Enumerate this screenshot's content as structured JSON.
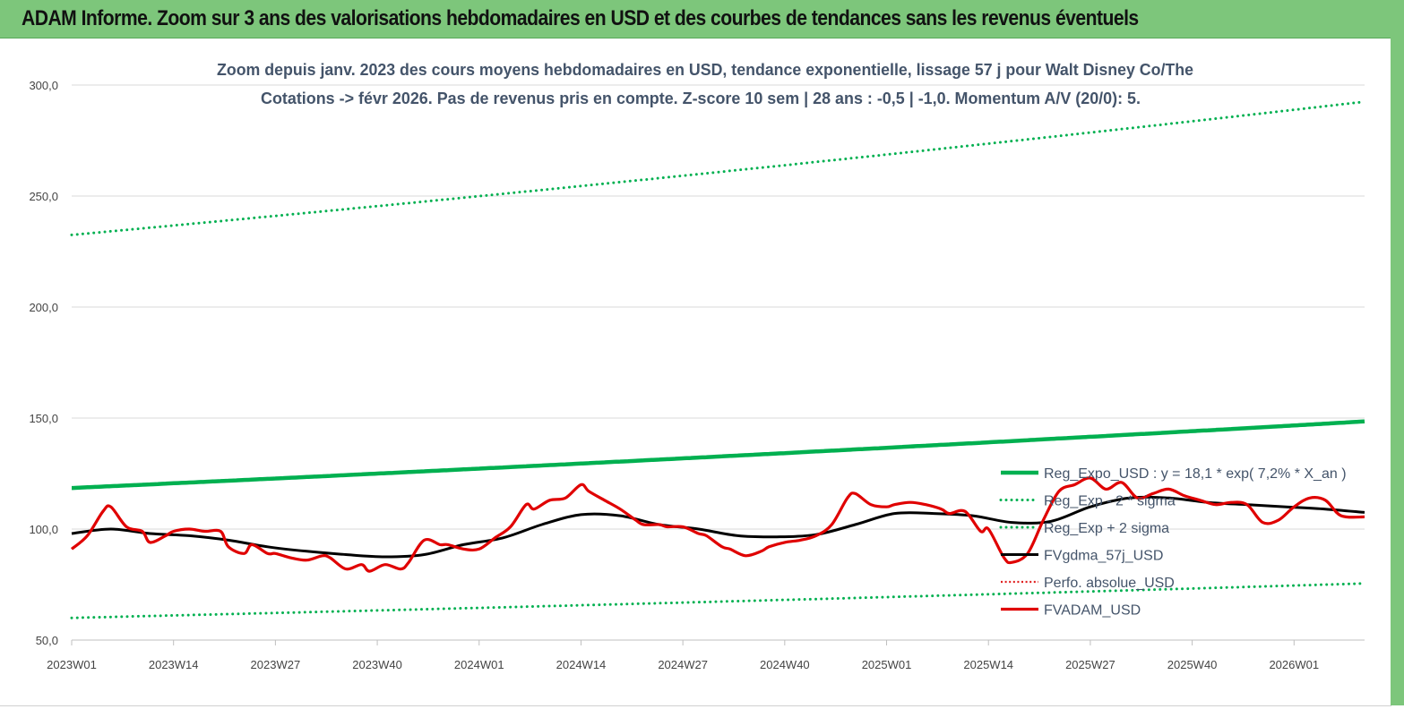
{
  "banner": {
    "title": "ADAM Informe. Zoom sur 3 ans des valorisations hebdomadaires en USD et des courbes de tendances sans les revenus éventuels"
  },
  "colors": {
    "banner_bg": "#7dc67b",
    "reg_expo": "#00b050",
    "sigma": "#00b050",
    "fvgdma": "#000000",
    "perfo": "#e02020",
    "fvadam": "#e00000",
    "title_text": "#44546a"
  },
  "chart_data": {
    "type": "line",
    "title": "Zoom depuis janv. 2023 des cours moyens hebdomadaires en USD, tendance exponentielle, lissage 57 j pour Walt Disney Co/The",
    "subtitle": "Cotations -> févr 2026.  Pas de revenus pris en compte. Z-score 10 sem  | 28 ans : -0,5 | -1,0. Momentum A/V (20/0): 5.",
    "ylim": [
      50,
      300
    ],
    "yticks": [
      "50,0",
      "100,0",
      "150,0",
      "200,0",
      "250,0",
      "300,0"
    ],
    "ytick_values": [
      50,
      100,
      150,
      200,
      250,
      300
    ],
    "xticks": [
      "2023W01",
      "2023W14",
      "2023W27",
      "2023W40",
      "2024W01",
      "2024W14",
      "2024W27",
      "2024W40",
      "2025W01",
      "2025W14",
      "2025W27",
      "2025W40",
      "2026W01"
    ],
    "xtick_index": [
      0,
      13,
      26,
      39,
      52,
      65,
      78,
      91,
      104,
      117,
      130,
      143,
      156
    ],
    "n_weeks": 166,
    "grid": "horizontal",
    "legend_position": "right",
    "series": [
      {
        "name": "Reg_Expo_USD : y = 18,1 * exp( 7,2% *  X_an )",
        "style": "solid-thick",
        "color": "#00b050",
        "x": [
          0,
          165
        ],
        "values": [
          118.5,
          148.5
        ],
        "curve": "exponential"
      },
      {
        "name": "Reg_Exp - 2 * sigma",
        "style": "dotted",
        "color": "#00b050",
        "x": [
          0,
          165
        ],
        "values": [
          60,
          75.5
        ],
        "curve": "exponential"
      },
      {
        "name": "Reg_Exp + 2 sigma",
        "style": "dotted",
        "color": "#00b050",
        "x": [
          0,
          165
        ],
        "values": [
          232.5,
          292.5
        ],
        "curve": "exponential"
      },
      {
        "name": "FVgdma_57j_USD",
        "style": "solid",
        "color": "#000000",
        "x": [
          0,
          5,
          10,
          15,
          20,
          25,
          30,
          35,
          40,
          45,
          50,
          55,
          60,
          65,
          70,
          75,
          80,
          85,
          90,
          95,
          100,
          105,
          110,
          115,
          120,
          125,
          130,
          135,
          140,
          145,
          150,
          155,
          160,
          165
        ],
        "values": [
          98,
          100,
          98,
          97,
          95,
          92,
          90,
          88.5,
          87.5,
          88.5,
          93,
          96,
          102,
          106.5,
          106,
          102,
          100,
          97,
          96.5,
          97.5,
          102,
          107,
          107,
          106,
          103,
          103.5,
          110,
          114,
          114,
          112,
          111,
          110,
          109,
          107.5
        ]
      },
      {
        "name": "Perfo. absolue_USD",
        "style": "dotted",
        "color": "#e02020",
        "x": [],
        "values": []
      },
      {
        "name": "FVADAM_USD",
        "style": "solid-thick",
        "color": "#e00000",
        "x": [
          0,
          2,
          4,
          5,
          7,
          9,
          10,
          12,
          13,
          15,
          17,
          19,
          20,
          22,
          23,
          25,
          26,
          28,
          30,
          32,
          33,
          35,
          37,
          38,
          40,
          42,
          43,
          45,
          47,
          48,
          50,
          52,
          54,
          56,
          58,
          59,
          61,
          63,
          65,
          66,
          68,
          70,
          72,
          73,
          75,
          76,
          78,
          80,
          81,
          83,
          84,
          86,
          88,
          89,
          91,
          93,
          95,
          97,
          99,
          100,
          102,
          104,
          105,
          107,
          109,
          111,
          112,
          114,
          116,
          117,
          119,
          120,
          122,
          124,
          126,
          128,
          130,
          132,
          134,
          136,
          138,
          140,
          142,
          144,
          146,
          148,
          150,
          152,
          154,
          156,
          158,
          160,
          162,
          165
        ],
        "values": [
          91,
          97,
          108,
          110,
          101,
          99,
          94,
          97,
          99,
          100,
          99,
          99,
          92,
          89,
          93,
          89,
          89,
          87,
          86,
          88,
          87,
          82,
          84,
          81,
          84,
          82,
          85,
          95,
          93,
          93,
          91,
          91,
          96,
          101,
          111,
          109,
          113,
          114,
          120,
          117,
          113,
          109,
          104,
          102,
          102,
          101,
          101,
          98,
          97,
          92,
          91,
          88,
          90,
          92,
          94,
          95,
          97,
          102,
          114,
          116,
          111,
          110,
          111,
          112,
          111,
          109,
          107,
          108,
          99,
          100,
          87,
          85,
          89,
          104,
          117,
          120,
          123,
          118,
          121,
          114,
          116,
          118,
          115,
          113,
          111,
          112,
          111,
          103,
          104,
          110,
          114,
          113,
          106,
          105.5
        ]
      }
    ]
  }
}
